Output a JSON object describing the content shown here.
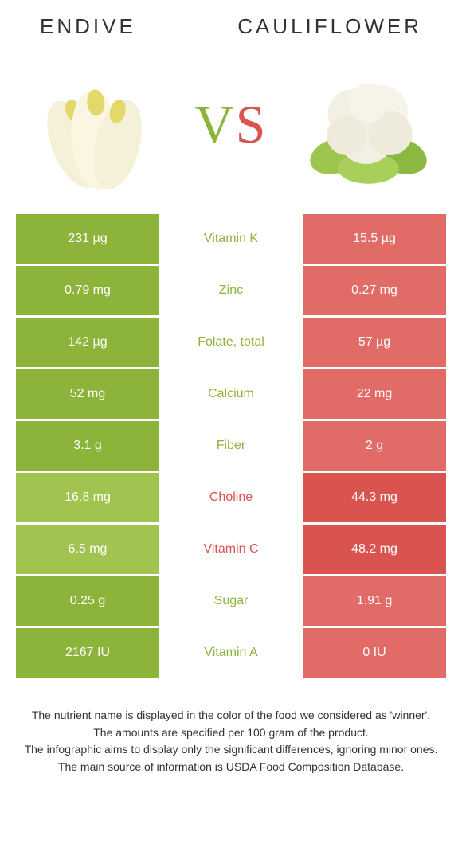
{
  "colors": {
    "green": "#8cb33a",
    "red": "#d9534f",
    "green_light": "#a0c44f",
    "red_light": "#e06b67"
  },
  "header": {
    "left": "ENDIVE",
    "right": "CAULIFLOWER"
  },
  "vs": {
    "v": "V",
    "s": "S"
  },
  "rows": [
    {
      "left": "231 µg",
      "label": "Vitamin K",
      "right": "15.5 µg",
      "winner": "left"
    },
    {
      "left": "0.79 mg",
      "label": "Zinc",
      "right": "0.27 mg",
      "winner": "left"
    },
    {
      "left": "142 µg",
      "label": "Folate, total",
      "right": "57 µg",
      "winner": "left"
    },
    {
      "left": "52 mg",
      "label": "Calcium",
      "right": "22 mg",
      "winner": "left"
    },
    {
      "left": "3.1 g",
      "label": "Fiber",
      "right": "2 g",
      "winner": "left"
    },
    {
      "left": "16.8 mg",
      "label": "Choline",
      "right": "44.3 mg",
      "winner": "right"
    },
    {
      "left": "6.5 mg",
      "label": "Vitamin C",
      "right": "48.2 mg",
      "winner": "right"
    },
    {
      "left": "0.25 g",
      "label": "Sugar",
      "right": "1.91 g",
      "winner": "left"
    },
    {
      "left": "2167 IU",
      "label": "Vitamin A",
      "right": "0 IU",
      "winner": "left"
    }
  ],
  "footer": {
    "l1": "The nutrient name is displayed in the color of the food we considered as 'winner'.",
    "l2": "The amounts are specified per 100 gram of the product.",
    "l3": "The infographic aims to display only the significant differences, ignoring minor ones.",
    "l4": "The main source of information is USDA Food Composition Database."
  }
}
